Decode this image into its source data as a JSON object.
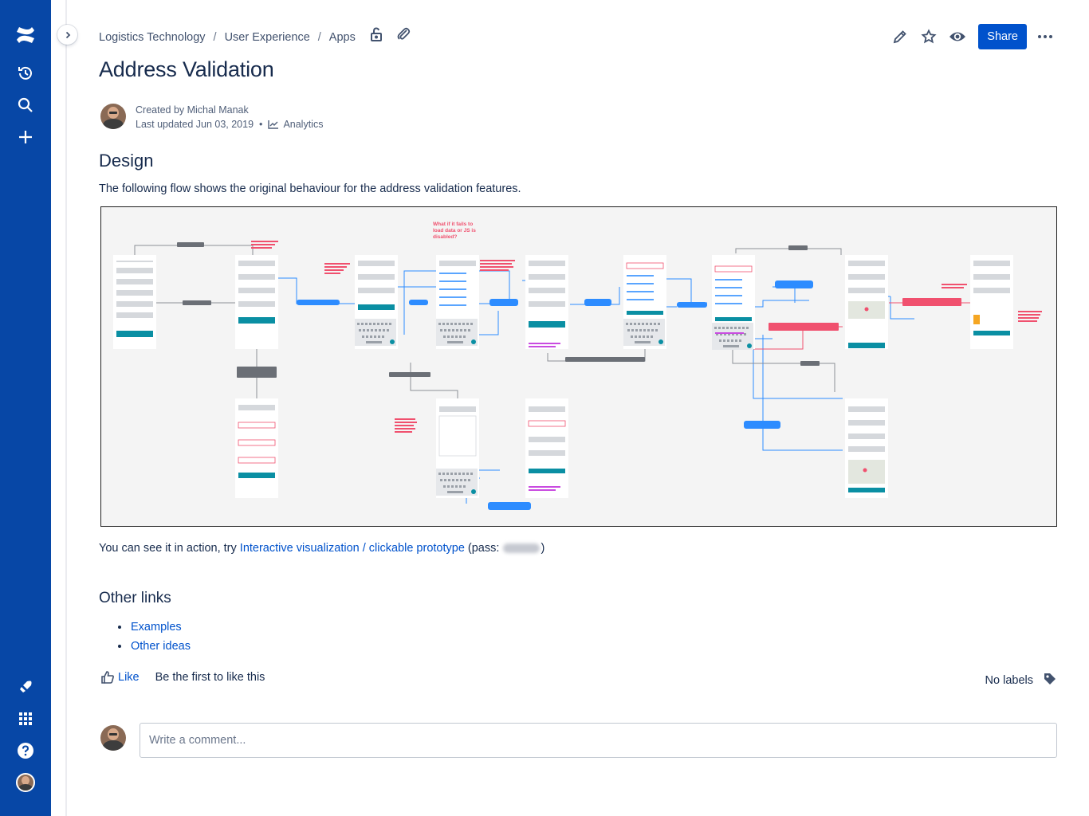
{
  "breadcrumb": {
    "items": [
      "Logistics Technology",
      "User Experience",
      "Apps"
    ],
    "separator": "/"
  },
  "header_icons": [
    "unlock-icon",
    "attachment-icon"
  ],
  "actions": {
    "icons": [
      "edit-icon",
      "star-icon",
      "watch-icon"
    ],
    "share_label": "Share",
    "more": "more-icon"
  },
  "page": {
    "title": "Address Validation",
    "byline": {
      "created": "Created by Michal Manak",
      "updated": "Last updated Jun 03, 2019",
      "analytics": "Analytics"
    }
  },
  "content": {
    "design_heading": "Design",
    "design_desc": "The following flow shows the original behaviour for the address validation features.",
    "flow_note": "What if it fails to load data or JS is disabled?",
    "action_prefix": "You can see it in action, try ",
    "action_link": "Interactive visualization / clickable prototype",
    "action_pass_open": " (pass: ",
    "action_pass_close": ")",
    "other_links_heading": "Other links",
    "other_links": [
      "Examples",
      "Other ideas"
    ]
  },
  "footer": {
    "like_label": "Like",
    "like_text": "Be the first to like this",
    "labels_text": "No labels"
  },
  "comment": {
    "placeholder": "Write a comment..."
  },
  "nav_icons": [
    "confluence-logo-icon",
    "recent-icon",
    "search-icon",
    "create-icon",
    "feedback-icon",
    "app-switcher-icon",
    "help-icon",
    "profile-avatar"
  ],
  "colors": {
    "nav_bg": "#0747A6",
    "primary": "#0052CC",
    "text": "#172B4D",
    "flow_accent": "#0a8fa3",
    "flow_blue": "#2d8cff",
    "flow_red": "#f0506e"
  }
}
